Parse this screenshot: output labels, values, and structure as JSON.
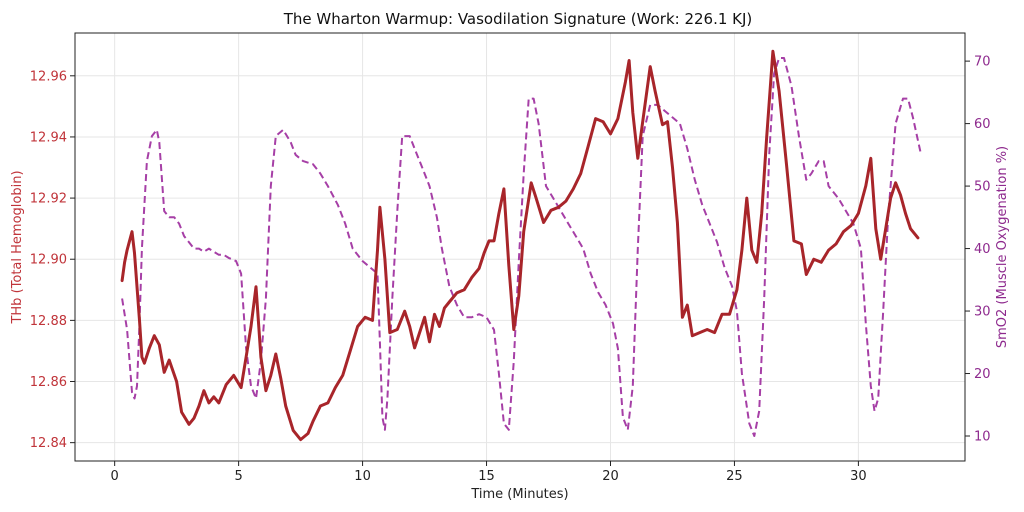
{
  "chart_data": {
    "type": "line",
    "title": "The Wharton Warmup: Vasodilation Signature (Work: 226.1 KJ)",
    "xlabel": "Time (Minutes)",
    "ylabel_left": "THb (Total Hemoglobin)",
    "ylabel_right": "SmO2 (Muscle Oxygenation %)",
    "xlim": [
      -1.6,
      34.3
    ],
    "ylim_left": [
      12.834,
      12.974
    ],
    "ylim_right": [
      6.0,
      74.5
    ],
    "x_ticks": [
      "0",
      "5",
      "10",
      "15",
      "20",
      "25",
      "30"
    ],
    "y_left_ticks": [
      "12.84",
      "12.86",
      "12.88",
      "12.90",
      "12.92",
      "12.94",
      "12.96"
    ],
    "y_right_ticks": [
      "10",
      "20",
      "30",
      "40",
      "50",
      "60",
      "70"
    ],
    "grid": true,
    "colors": {
      "thb": "#a8252a",
      "smo2": "#a63fa6",
      "left_axis": "#c0343a",
      "right_axis": "#8e2a8e"
    },
    "series": [
      {
        "key": "thb",
        "axis": "left",
        "style": "solid",
        "points": [
          [
            0.3,
            12.893
          ],
          [
            0.4,
            12.899
          ],
          [
            0.5,
            12.903
          ],
          [
            0.7,
            12.909
          ],
          [
            0.8,
            12.902
          ],
          [
            1.0,
            12.88
          ],
          [
            1.1,
            12.868
          ],
          [
            1.2,
            12.866
          ],
          [
            1.4,
            12.871
          ],
          [
            1.6,
            12.875
          ],
          [
            1.8,
            12.872
          ],
          [
            2.0,
            12.863
          ],
          [
            2.2,
            12.867
          ],
          [
            2.5,
            12.86
          ],
          [
            2.7,
            12.85
          ],
          [
            3.0,
            12.846
          ],
          [
            3.2,
            12.848
          ],
          [
            3.4,
            12.852
          ],
          [
            3.6,
            12.857
          ],
          [
            3.8,
            12.853
          ],
          [
            4.0,
            12.855
          ],
          [
            4.2,
            12.853
          ],
          [
            4.5,
            12.859
          ],
          [
            4.8,
            12.862
          ],
          [
            5.1,
            12.858
          ],
          [
            5.3,
            12.868
          ],
          [
            5.5,
            12.878
          ],
          [
            5.7,
            12.891
          ],
          [
            5.9,
            12.868
          ],
          [
            6.1,
            12.857
          ],
          [
            6.3,
            12.862
          ],
          [
            6.5,
            12.869
          ],
          [
            6.7,
            12.861
          ],
          [
            6.9,
            12.852
          ],
          [
            7.2,
            12.844
          ],
          [
            7.5,
            12.841
          ],
          [
            7.8,
            12.843
          ],
          [
            8.0,
            12.847
          ],
          [
            8.3,
            12.852
          ],
          [
            8.6,
            12.853
          ],
          [
            8.9,
            12.858
          ],
          [
            9.2,
            12.862
          ],
          [
            9.5,
            12.87
          ],
          [
            9.8,
            12.878
          ],
          [
            10.1,
            12.881
          ],
          [
            10.4,
            12.88
          ],
          [
            10.6,
            12.903
          ],
          [
            10.7,
            12.917
          ],
          [
            10.9,
            12.9
          ],
          [
            11.1,
            12.876
          ],
          [
            11.4,
            12.877
          ],
          [
            11.7,
            12.883
          ],
          [
            11.9,
            12.878
          ],
          [
            12.1,
            12.871
          ],
          [
            12.3,
            12.876
          ],
          [
            12.5,
            12.881
          ],
          [
            12.7,
            12.873
          ],
          [
            12.9,
            12.882
          ],
          [
            13.1,
            12.878
          ],
          [
            13.3,
            12.884
          ],
          [
            13.5,
            12.886
          ],
          [
            13.8,
            12.889
          ],
          [
            14.1,
            12.89
          ],
          [
            14.4,
            12.894
          ],
          [
            14.7,
            12.897
          ],
          [
            14.9,
            12.902
          ],
          [
            15.1,
            12.906
          ],
          [
            15.3,
            12.906
          ],
          [
            15.5,
            12.915
          ],
          [
            15.7,
            12.923
          ],
          [
            15.9,
            12.898
          ],
          [
            16.1,
            12.877
          ],
          [
            16.3,
            12.888
          ],
          [
            16.5,
            12.909
          ],
          [
            16.8,
            12.925
          ],
          [
            17.0,
            12.92
          ],
          [
            17.3,
            12.912
          ],
          [
            17.6,
            12.916
          ],
          [
            17.9,
            12.917
          ],
          [
            18.2,
            12.919
          ],
          [
            18.5,
            12.923
          ],
          [
            18.8,
            12.928
          ],
          [
            19.1,
            12.937
          ],
          [
            19.4,
            12.946
          ],
          [
            19.7,
            12.945
          ],
          [
            20.0,
            12.941
          ],
          [
            20.3,
            12.946
          ],
          [
            20.6,
            12.958
          ],
          [
            20.75,
            12.965
          ],
          [
            20.9,
            12.948
          ],
          [
            21.1,
            12.933
          ],
          [
            21.3,
            12.945
          ],
          [
            21.6,
            12.963
          ],
          [
            21.8,
            12.955
          ],
          [
            22.1,
            12.944
          ],
          [
            22.3,
            12.945
          ],
          [
            22.5,
            12.93
          ],
          [
            22.7,
            12.912
          ],
          [
            22.9,
            12.881
          ],
          [
            23.1,
            12.885
          ],
          [
            23.3,
            12.875
          ],
          [
            23.6,
            12.876
          ],
          [
            23.9,
            12.877
          ],
          [
            24.2,
            12.876
          ],
          [
            24.5,
            12.882
          ],
          [
            24.8,
            12.882
          ],
          [
            25.1,
            12.89
          ],
          [
            25.3,
            12.903
          ],
          [
            25.5,
            12.92
          ],
          [
            25.7,
            12.903
          ],
          [
            25.9,
            12.899
          ],
          [
            26.1,
            12.915
          ],
          [
            26.3,
            12.94
          ],
          [
            26.55,
            12.968
          ],
          [
            26.8,
            12.955
          ],
          [
            27.1,
            12.931
          ],
          [
            27.4,
            12.906
          ],
          [
            27.7,
            12.905
          ],
          [
            27.9,
            12.895
          ],
          [
            28.2,
            12.9
          ],
          [
            28.5,
            12.899
          ],
          [
            28.8,
            12.903
          ],
          [
            29.1,
            12.905
          ],
          [
            29.4,
            12.909
          ],
          [
            29.7,
            12.911
          ],
          [
            30.0,
            12.915
          ],
          [
            30.3,
            12.924
          ],
          [
            30.5,
            12.933
          ],
          [
            30.7,
            12.91
          ],
          [
            30.9,
            12.9
          ],
          [
            31.1,
            12.91
          ],
          [
            31.3,
            12.92
          ],
          [
            31.5,
            12.925
          ],
          [
            31.7,
            12.921
          ],
          [
            31.9,
            12.915
          ],
          [
            32.1,
            12.91
          ],
          [
            32.4,
            12.907
          ]
        ]
      },
      {
        "key": "smo2",
        "axis": "right",
        "style": "dashed",
        "points": [
          [
            0.3,
            32
          ],
          [
            0.5,
            27
          ],
          [
            0.7,
            17
          ],
          [
            0.8,
            16
          ],
          [
            0.9,
            18
          ],
          [
            1.0,
            28
          ],
          [
            1.1,
            40
          ],
          [
            1.3,
            54
          ],
          [
            1.5,
            58
          ],
          [
            1.7,
            59
          ],
          [
            1.8,
            57
          ],
          [
            2.0,
            46
          ],
          [
            2.2,
            45
          ],
          [
            2.4,
            45
          ],
          [
            2.6,
            44
          ],
          [
            2.8,
            42
          ],
          [
            3.0,
            41
          ],
          [
            3.2,
            40
          ],
          [
            3.4,
            40
          ],
          [
            3.6,
            39.5
          ],
          [
            3.8,
            40
          ],
          [
            4.0,
            39.5
          ],
          [
            4.2,
            39
          ],
          [
            4.4,
            39
          ],
          [
            4.6,
            38.5
          ],
          [
            4.9,
            38
          ],
          [
            5.1,
            36
          ],
          [
            5.3,
            24
          ],
          [
            5.5,
            18
          ],
          [
            5.7,
            16
          ],
          [
            5.9,
            22
          ],
          [
            6.1,
            32
          ],
          [
            6.3,
            50
          ],
          [
            6.5,
            58
          ],
          [
            6.8,
            59
          ],
          [
            7.1,
            57
          ],
          [
            7.3,
            55
          ],
          [
            7.6,
            54
          ],
          [
            8.0,
            53.5
          ],
          [
            8.3,
            52
          ],
          [
            8.6,
            50
          ],
          [
            9.0,
            47
          ],
          [
            9.3,
            44
          ],
          [
            9.6,
            40
          ],
          [
            10.0,
            38
          ],
          [
            10.3,
            37
          ],
          [
            10.6,
            36
          ],
          [
            10.7,
            25
          ],
          [
            10.8,
            13
          ],
          [
            10.9,
            11
          ],
          [
            11.0,
            16
          ],
          [
            11.2,
            32
          ],
          [
            11.4,
            46
          ],
          [
            11.6,
            58
          ],
          [
            11.9,
            58
          ],
          [
            12.1,
            56
          ],
          [
            12.4,
            53
          ],
          [
            12.7,
            50
          ],
          [
            13.0,
            45
          ],
          [
            13.2,
            40
          ],
          [
            13.5,
            34
          ],
          [
            13.8,
            31
          ],
          [
            14.1,
            29
          ],
          [
            14.4,
            29
          ],
          [
            14.7,
            29.5
          ],
          [
            15.0,
            29
          ],
          [
            15.3,
            27
          ],
          [
            15.5,
            20
          ],
          [
            15.7,
            12
          ],
          [
            15.9,
            11
          ],
          [
            16.1,
            22
          ],
          [
            16.3,
            38
          ],
          [
            16.5,
            52
          ],
          [
            16.7,
            64
          ],
          [
            16.9,
            64
          ],
          [
            17.1,
            60
          ],
          [
            17.4,
            50
          ],
          [
            17.7,
            48
          ],
          [
            18.0,
            46
          ],
          [
            18.3,
            44
          ],
          [
            18.6,
            42
          ],
          [
            18.9,
            40
          ],
          [
            19.2,
            36
          ],
          [
            19.5,
            33
          ],
          [
            19.8,
            31
          ],
          [
            20.1,
            28
          ],
          [
            20.3,
            24
          ],
          [
            20.5,
            13
          ],
          [
            20.7,
            11
          ],
          [
            20.9,
            18
          ],
          [
            21.1,
            40
          ],
          [
            21.3,
            58
          ],
          [
            21.6,
            63
          ],
          [
            21.9,
            63
          ],
          [
            22.2,
            62
          ],
          [
            22.5,
            61
          ],
          [
            22.8,
            60
          ],
          [
            23.1,
            56
          ],
          [
            23.4,
            51
          ],
          [
            23.7,
            47
          ],
          [
            24.0,
            44
          ],
          [
            24.3,
            41
          ],
          [
            24.6,
            37
          ],
          [
            24.9,
            34
          ],
          [
            25.1,
            30
          ],
          [
            25.3,
            20
          ],
          [
            25.6,
            12
          ],
          [
            25.8,
            10
          ],
          [
            26.0,
            14
          ],
          [
            26.2,
            32
          ],
          [
            26.4,
            55
          ],
          [
            26.6,
            68
          ],
          [
            26.8,
            70.5
          ],
          [
            27.0,
            70.5
          ],
          [
            27.3,
            66
          ],
          [
            27.6,
            58
          ],
          [
            27.9,
            51
          ],
          [
            28.1,
            52
          ],
          [
            28.4,
            54
          ],
          [
            28.6,
            54
          ],
          [
            28.8,
            50
          ],
          [
            29.2,
            48
          ],
          [
            29.5,
            46
          ],
          [
            29.8,
            44
          ],
          [
            30.1,
            40
          ],
          [
            30.3,
            28
          ],
          [
            30.5,
            18
          ],
          [
            30.65,
            14
          ],
          [
            30.8,
            16
          ],
          [
            31.0,
            30
          ],
          [
            31.2,
            45
          ],
          [
            31.5,
            60
          ],
          [
            31.8,
            64
          ],
          [
            32.0,
            64
          ],
          [
            32.2,
            61
          ],
          [
            32.5,
            55.5
          ]
        ]
      }
    ]
  }
}
